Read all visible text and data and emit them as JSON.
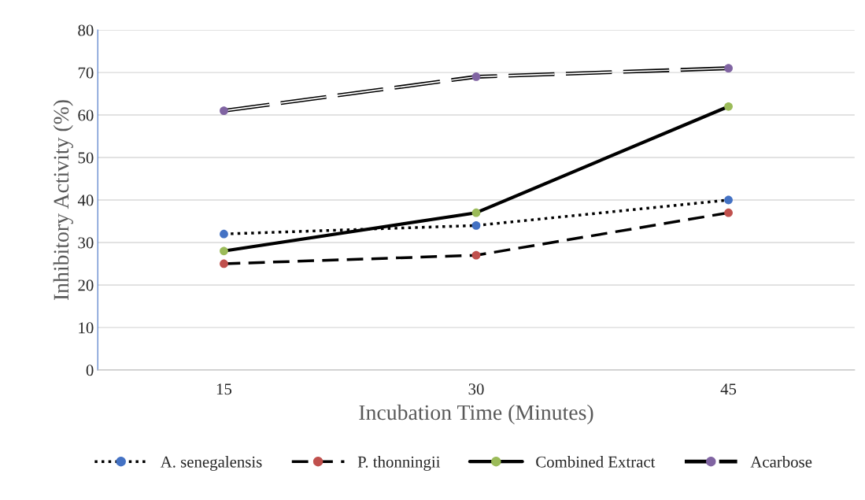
{
  "chart_data": {
    "type": "line",
    "xlabel": "Incubation Time (Minutes)",
    "ylabel": "Inhibitory Activity (%)",
    "categories": [
      "15",
      "30",
      "45"
    ],
    "series": [
      {
        "name": "A. senegalensis",
        "color": "#4472c4",
        "values": [
          32,
          34,
          40
        ],
        "line_style": "dotted"
      },
      {
        "name": "P. thonningii",
        "color": "#c0504d",
        "values": [
          25,
          27,
          37
        ],
        "line_style": "dashed"
      },
      {
        "name": "Combined Extract",
        "color": "#9bbb59",
        "values": [
          28,
          37,
          62
        ],
        "line_style": "solid"
      },
      {
        "name": "Acarbose",
        "color": "#8064a2",
        "values": [
          61,
          69,
          71
        ],
        "line_style": "dashed"
      }
    ],
    "ylim": [
      0,
      80
    ],
    "yticks": [
      0,
      10,
      20,
      30,
      40,
      50,
      60,
      70,
      80
    ],
    "grid": "y",
    "legend": "bottom",
    "marker": "circle"
  }
}
